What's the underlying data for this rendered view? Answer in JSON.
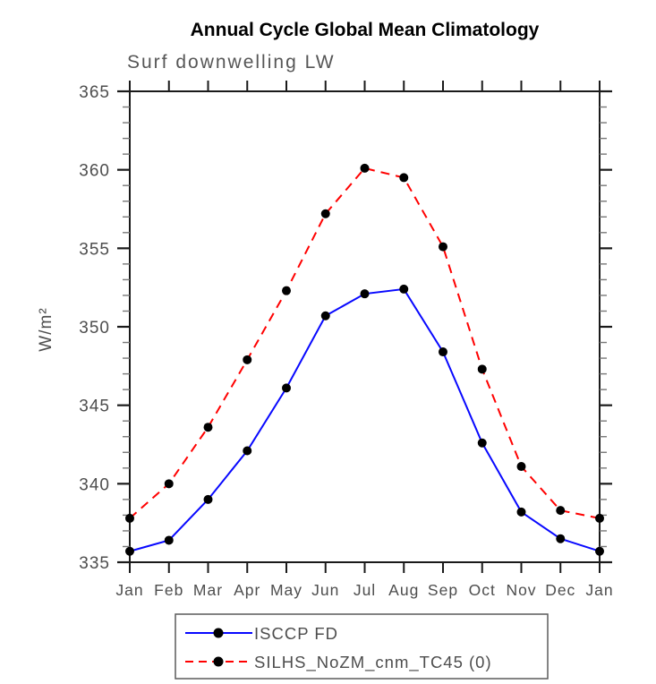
{
  "header": {
    "title": "Annual Cycle Global Mean Climatology",
    "subtitle": "Surf downwelling LW"
  },
  "chart_data": {
    "type": "line",
    "title": "Annual Cycle Global Mean Climatology",
    "subtitle": "Surf downwelling LW",
    "xlabel": "",
    "ylabel": "W/m²",
    "ylim": [
      335,
      365
    ],
    "ytick_major_step": 5,
    "ytick_minor_step": 1,
    "ytick_labels": [
      "335",
      "340",
      "345",
      "350",
      "355",
      "360",
      "365"
    ],
    "grid": false,
    "legend_position": "bottom-center",
    "categories": [
      "Jan",
      "Feb",
      "Mar",
      "Apr",
      "May",
      "Jun",
      "Jul",
      "Aug",
      "Sep",
      "Oct",
      "Nov",
      "Dec",
      "Jan"
    ],
    "series": [
      {
        "name": "ISCCP FD",
        "color": "#0808ff",
        "line_style": "solid",
        "marker": "filled-circle",
        "marker_color": "#000000",
        "values": [
          335.7,
          336.4,
          339.0,
          342.1,
          346.1,
          350.7,
          352.1,
          352.4,
          348.4,
          342.6,
          338.2,
          336.5,
          335.7
        ]
      },
      {
        "name": "SILHS_NoZM_cnm_TC45 (0)",
        "color": "#ff0000",
        "line_style": "dashed",
        "marker": "filled-circle",
        "marker_color": "#000000",
        "values": [
          337.8,
          340.0,
          343.6,
          347.9,
          352.3,
          357.2,
          360.1,
          359.5,
          355.1,
          347.3,
          341.1,
          338.3,
          337.8
        ]
      }
    ],
    "colors": {
      "axis": "#1a1a1a",
      "tick_minor": "#787878",
      "label_text": "#4d4d4d",
      "legend_border": "#5a5a5a"
    }
  }
}
